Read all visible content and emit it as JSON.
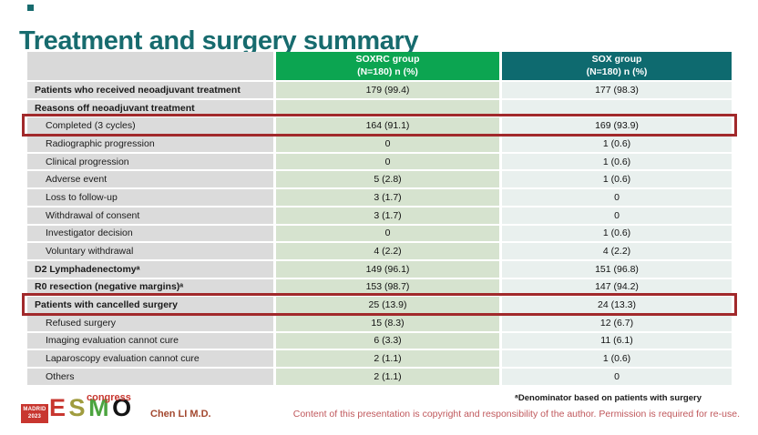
{
  "title": "Treatment and surgery summary",
  "table": {
    "header": {
      "soxrc_line1": "SOXRC group",
      "soxrc_line2": "(N=180)  n (%)",
      "sox_line1": "SOX group",
      "sox_line2": "(N=180)  n (%)"
    },
    "rows": [
      {
        "label": "Patients who received neoadjuvant treatment",
        "soxrc": "179 (99.4)",
        "sox": "177 (98.3)"
      },
      {
        "label": "Reasons off neoadjuvant treatment",
        "soxrc": "",
        "sox": ""
      },
      {
        "label": "Completed (3 cycles)",
        "soxrc": "164 (91.1)",
        "sox": "169 (93.9)"
      },
      {
        "label": "Radiographic progression",
        "soxrc": "0",
        "sox": "1 (0.6)"
      },
      {
        "label": "Clinical progression",
        "soxrc": "0",
        "sox": "1 (0.6)"
      },
      {
        "label": "Adverse event",
        "soxrc": "5 (2.8)",
        "sox": "1 (0.6)"
      },
      {
        "label": "Loss to follow-up",
        "soxrc": "3 (1.7)",
        "sox": "0"
      },
      {
        "label": "Withdrawal of consent",
        "soxrc": "3 (1.7)",
        "sox": "0"
      },
      {
        "label": "Investigator decision",
        "soxrc": "0",
        "sox": "1 (0.6)"
      },
      {
        "label": "Voluntary withdrawal",
        "soxrc": "4 (2.2)",
        "sox": "4 (2.2)"
      },
      {
        "label": "D2 Lymphadenectomyᵃ",
        "soxrc": "149 (96.1)",
        "sox": "151 (96.8)"
      },
      {
        "label": "R0 resection (negative margins)ᵃ",
        "soxrc": "153 (98.7)",
        "sox": "147 (94.2)"
      },
      {
        "label": "Patients with cancelled surgery",
        "soxrc": "25 (13.9)",
        "sox": "24 (13.3)"
      },
      {
        "label": "Refused surgery",
        "soxrc": "15 (8.3)",
        "sox": "12 (6.7)"
      },
      {
        "label": "Imaging evaluation cannot cure",
        "soxrc": "6 (3.3)",
        "sox": "11 (6.1)"
      },
      {
        "label": "Laparoscopy evaluation cannot cure",
        "soxrc": "2 (1.1)",
        "sox": "1 (0.6)"
      },
      {
        "label": "Others",
        "soxrc": "2 (1.1)",
        "sox": "0"
      }
    ]
  },
  "footer": {
    "logo": {
      "city": "MADRID",
      "year": "2023",
      "letters": [
        "E",
        "S",
        "M",
        "O"
      ],
      "congress": "congress"
    },
    "presenter": "Chen LI M.D.",
    "footnote": "ᵃDenominator based on patients with surgery",
    "copyright": "Content of this presentation is copyright and responsibility of the author. Permission is required for re-use."
  },
  "colors": {
    "title-teal": "#176b6e",
    "header-green": "#0ca551",
    "header-teal": "#0e6a6f",
    "label-cell-gray": "#dbdbdb",
    "soxrc-cell-green": "#d6e3cf",
    "sox-cell-blue": "#e9f0ee",
    "highlight-red": "#a1292b",
    "presenter-red": "#a3482f",
    "copyright-rose": "#c0585c",
    "logo-red": "#c8362f",
    "logo-olive": "#a09c3f",
    "logo-green": "#4ca43f",
    "logo-black": "#141414"
  }
}
